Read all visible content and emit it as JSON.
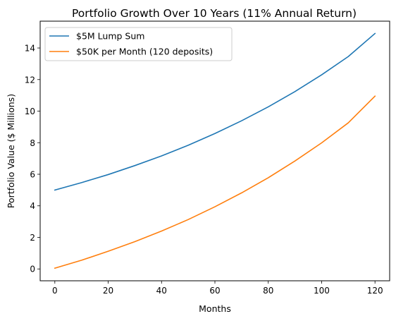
{
  "chart_data": {
    "type": "line",
    "title": "Portfolio Growth Over 10 Years (11% Annual Return)",
    "xlabel": "Months",
    "ylabel": "Portfolio Value ($ Millions)",
    "xlim": [
      -5.5,
      125.5
    ],
    "ylim": [
      -0.75,
      15.7
    ],
    "xticks": [
      0,
      20,
      40,
      60,
      80,
      100,
      120
    ],
    "yticks": [
      0,
      2,
      4,
      6,
      8,
      10,
      12,
      14
    ],
    "grid": false,
    "legend_position": "top-left",
    "x": [
      0,
      10,
      20,
      30,
      40,
      50,
      60,
      70,
      80,
      90,
      100,
      110,
      120
    ],
    "series": [
      {
        "name": "$5M Lump Sum",
        "color": "#1f77b4",
        "values": [
          5.0,
          5.47,
          5.98,
          6.55,
          7.16,
          7.84,
          8.58,
          9.39,
          10.27,
          11.24,
          12.3,
          13.46,
          14.92
        ]
      },
      {
        "name": "$50K per Month (120 deposits)",
        "color": "#ff7f0e",
        "values": [
          0.05,
          0.55,
          1.12,
          1.73,
          2.4,
          3.13,
          3.94,
          4.82,
          5.78,
          6.84,
          7.99,
          9.26,
          10.95
        ]
      }
    ]
  }
}
